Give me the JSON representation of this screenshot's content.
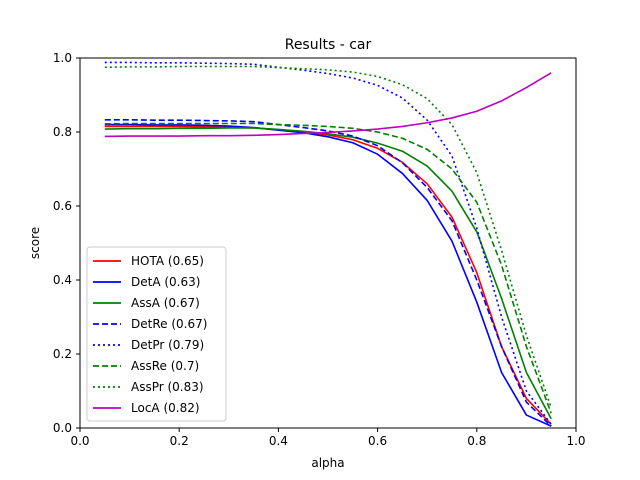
{
  "chart_data": {
    "type": "line",
    "title": "Results - car",
    "xlabel": "alpha",
    "ylabel": "score",
    "xlim": [
      0.0,
      1.0
    ],
    "ylim": [
      0.0,
      1.0
    ],
    "x_ticks": [
      "0.0",
      "0.2",
      "0.4",
      "0.6",
      "0.8",
      "1.0"
    ],
    "y_ticks": [
      "0.0",
      "0.2",
      "0.4",
      "0.6",
      "0.8",
      "1.0"
    ],
    "grid": false,
    "legend_position": "lower-left",
    "x": [
      0.05,
      0.1,
      0.15,
      0.2,
      0.25,
      0.3,
      0.35,
      0.4,
      0.45,
      0.5,
      0.55,
      0.6,
      0.65,
      0.7,
      0.75,
      0.8,
      0.85,
      0.9,
      0.95
    ],
    "series": [
      {
        "name": "HOTA (0.65)",
        "color": "#ff0000",
        "style": "solid",
        "values": [
          0.815,
          0.815,
          0.815,
          0.815,
          0.814,
          0.813,
          0.811,
          0.806,
          0.8,
          0.792,
          0.779,
          0.756,
          0.718,
          0.66,
          0.57,
          0.42,
          0.22,
          0.08,
          0.01
        ]
      },
      {
        "name": "DetA (0.63)",
        "color": "#0000ff",
        "style": "solid",
        "values": [
          0.82,
          0.82,
          0.819,
          0.819,
          0.818,
          0.816,
          0.812,
          0.805,
          0.798,
          0.787,
          0.771,
          0.74,
          0.688,
          0.615,
          0.505,
          0.34,
          0.15,
          0.035,
          0.005
        ]
      },
      {
        "name": "AssA (0.67)",
        "color": "#008000",
        "style": "solid",
        "values": [
          0.808,
          0.809,
          0.809,
          0.81,
          0.81,
          0.811,
          0.811,
          0.807,
          0.802,
          0.795,
          0.786,
          0.77,
          0.748,
          0.708,
          0.64,
          0.53,
          0.35,
          0.15,
          0.025
        ]
      },
      {
        "name": "DetRe (0.67)",
        "color": "#0000ff",
        "style": "dashed",
        "values": [
          0.833,
          0.833,
          0.832,
          0.832,
          0.831,
          0.83,
          0.828,
          0.82,
          0.812,
          0.803,
          0.789,
          0.763,
          0.717,
          0.65,
          0.56,
          0.4,
          0.22,
          0.07,
          0.005
        ]
      },
      {
        "name": "DetPr (0.79)",
        "color": "#0000ff",
        "style": "dotted",
        "values": [
          0.988,
          0.988,
          0.987,
          0.987,
          0.986,
          0.985,
          0.983,
          0.975,
          0.967,
          0.958,
          0.946,
          0.926,
          0.892,
          0.832,
          0.735,
          0.54,
          0.3,
          0.1,
          0.01
        ]
      },
      {
        "name": "AssRe (0.7)",
        "color": "#008000",
        "style": "dashed",
        "values": [
          0.822,
          0.823,
          0.823,
          0.823,
          0.823,
          0.823,
          0.823,
          0.82,
          0.818,
          0.815,
          0.81,
          0.8,
          0.783,
          0.753,
          0.7,
          0.61,
          0.44,
          0.22,
          0.04
        ]
      },
      {
        "name": "AssPr (0.83)",
        "color": "#008000",
        "style": "dotted",
        "values": [
          0.975,
          0.976,
          0.976,
          0.977,
          0.977,
          0.977,
          0.977,
          0.974,
          0.971,
          0.968,
          0.962,
          0.95,
          0.928,
          0.89,
          0.82,
          0.69,
          0.48,
          0.25,
          0.055
        ]
      },
      {
        "name": "LocA (0.82)",
        "color": "#bf00bf",
        "style": "solid",
        "values": [
          0.788,
          0.789,
          0.789,
          0.789,
          0.79,
          0.79,
          0.791,
          0.793,
          0.796,
          0.799,
          0.803,
          0.808,
          0.815,
          0.825,
          0.838,
          0.856,
          0.884,
          0.92,
          0.96
        ]
      }
    ]
  }
}
